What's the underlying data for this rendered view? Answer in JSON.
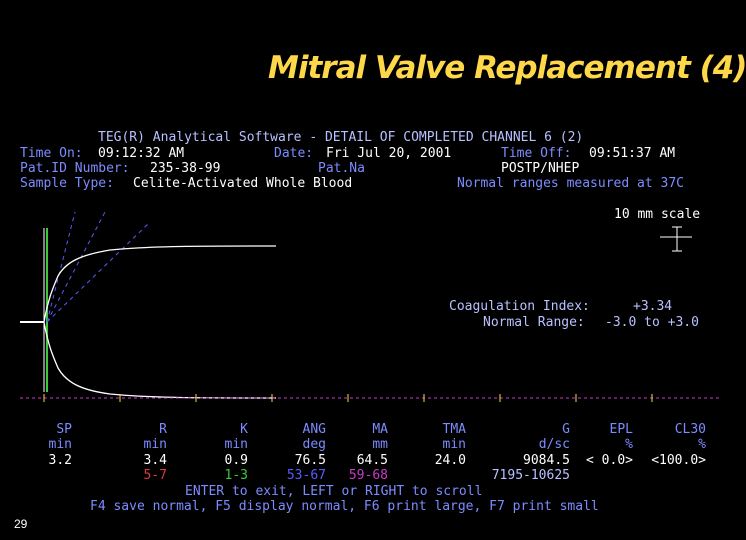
{
  "slide_title": "Mitral Valve Replacement (4)",
  "header": {
    "software_line": "TEG(R) Analytical Software - DETAIL OF COMPLETED CHANNEL 6 (2)",
    "time_on_label": "Time On:",
    "time_on": "09:12:32 AM",
    "date_label": "Date:",
    "date": "Fri Jul 20, 2001",
    "time_off_label": "Time Off:",
    "time_off": "09:51:37 AM",
    "pat_id_label": "Pat.ID Number:",
    "pat_id": "235-38-99",
    "pat_name_label": "Pat.Na",
    "pat_name": "POSTP/NHEP",
    "sample_type_label": "Sample Type:",
    "sample_type": "Celite-Activated Whole Blood",
    "normal_ranges_note": "Normal ranges measured at 37C"
  },
  "scale_label": "10 mm scale",
  "coag": {
    "index_label": "Coagulation Index:",
    "index_value": "+3.34",
    "range_label": "Normal Range:",
    "range_value": "-3.0 to +3.0"
  },
  "params": [
    {
      "name": "SP",
      "unit": "min",
      "value": "3.2",
      "range": "",
      "range_color": "#ffffff"
    },
    {
      "name": "R",
      "unit": "min",
      "value": "3.4",
      "range": "5-7",
      "range_color": "#d83c3c"
    },
    {
      "name": "K",
      "unit": "min",
      "value": "0.9",
      "range": "1-3",
      "range_color": "#3cc83c"
    },
    {
      "name": "ANG",
      "unit": "deg",
      "value": "76.5",
      "range": "53-67",
      "range_color": "#5a5aff"
    },
    {
      "name": "MA",
      "unit": "mm",
      "value": "64.5",
      "range": "59-68",
      "range_color": "#c83cc8"
    },
    {
      "name": "TMA",
      "unit": "min",
      "value": "24.0",
      "range": "",
      "range_color": "#ffffff"
    },
    {
      "name": "G",
      "unit": "d/sc",
      "value": "9084.5",
      "range": "7195-10625",
      "range_color": "#b8c0ff"
    },
    {
      "name": "EPL",
      "unit": "%",
      "value": "< 0.0>",
      "range": "",
      "range_color": "#ffffff"
    },
    {
      "name": "CL30",
      "unit": "%",
      "value": "<100.0>",
      "range": "",
      "range_color": "#ffffff"
    }
  ],
  "instructions": {
    "line1": "ENTER to exit, LEFT or RIGHT to scroll",
    "line2": "F4 save normal, F5 display normal, F6 print large, F7 print small"
  },
  "slide_number": "29",
  "colors": {
    "title": "#ffd84a",
    "label": "#7c8cff",
    "value": "#ffffff",
    "trace": "#ffffff",
    "baseline": "#c83cc8"
  }
}
